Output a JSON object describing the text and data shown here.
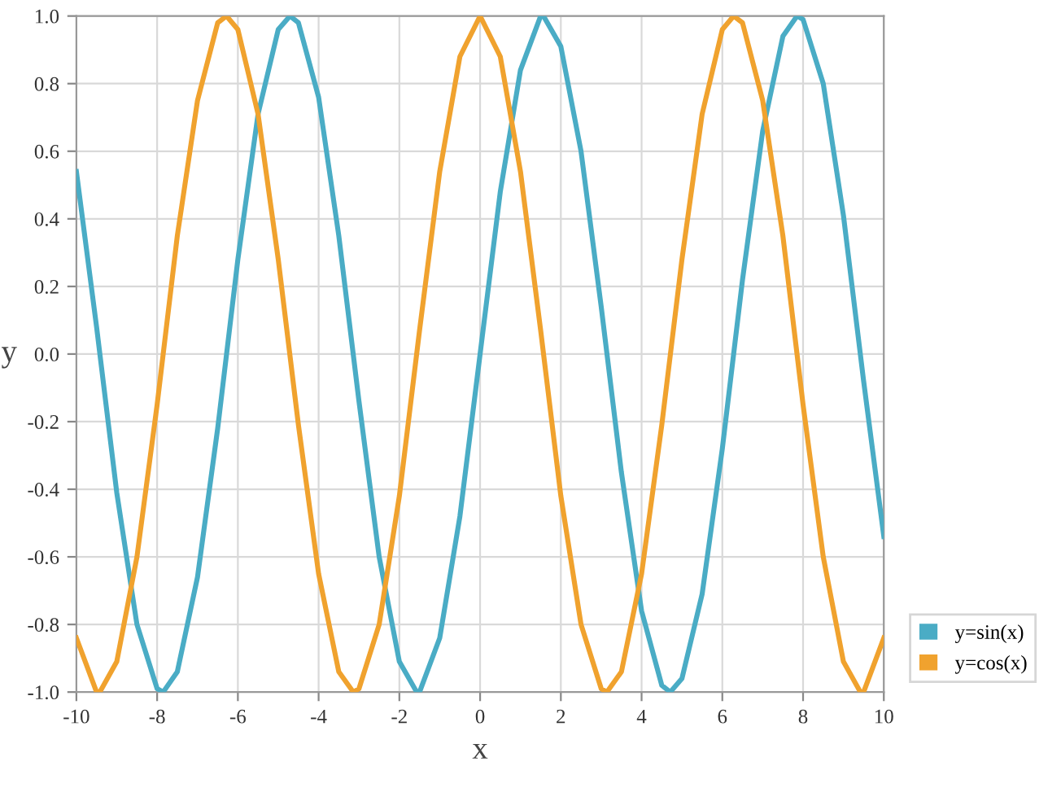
{
  "chart_data": {
    "type": "line",
    "xlabel": "x",
    "ylabel": "y",
    "series": [
      {
        "name": "y=sin(x)",
        "color": "#4aacc5",
        "x": [
          -10,
          -9.5,
          -9,
          -8.5,
          -8,
          -7.85,
          -7.5,
          -7,
          -6.5,
          -6,
          -5.5,
          -5,
          -4.71,
          -4.5,
          -4,
          -3.5,
          -3,
          -2.5,
          -2,
          -1.57,
          -1.5,
          -1,
          -0.5,
          0,
          0.5,
          1,
          1.5,
          1.57,
          2,
          2.5,
          3,
          3.5,
          4,
          4.5,
          4.71,
          5,
          5.5,
          6,
          6.5,
          7,
          7.5,
          7.85,
          8,
          8.5,
          9,
          9.5,
          10
        ],
        "values": [
          0.54,
          0.08,
          -0.41,
          -0.8,
          -0.99,
          -1,
          -0.94,
          -0.66,
          -0.22,
          0.28,
          0.71,
          0.96,
          1,
          0.98,
          0.76,
          0.35,
          -0.14,
          -0.6,
          -0.91,
          -1,
          -1,
          -0.84,
          -0.48,
          0,
          0.48,
          0.84,
          1,
          1,
          0.91,
          0.6,
          0.14,
          -0.35,
          -0.76,
          -0.98,
          -1,
          -0.96,
          -0.71,
          -0.28,
          0.22,
          0.66,
          0.94,
          1,
          0.99,
          0.8,
          0.41,
          -0.08,
          -0.54
        ]
      },
      {
        "name": "y=cos(x)",
        "color": "#f0a22e",
        "x": [
          -10,
          -9.5,
          -9.42,
          -9,
          -8.5,
          -8,
          -7.5,
          -7,
          -6.5,
          -6.28,
          -6,
          -5.5,
          -5,
          -4.5,
          -4,
          -3.5,
          -3.14,
          -3,
          -2.5,
          -2,
          -1.5,
          -1,
          -0.5,
          0,
          0.5,
          1,
          1.5,
          2,
          2.5,
          3,
          3.14,
          3.5,
          4,
          4.5,
          5,
          5.5,
          6,
          6.28,
          6.5,
          7,
          7.5,
          8,
          8.5,
          9,
          9.42,
          9.5,
          10
        ],
        "values": [
          -0.84,
          -1,
          -1,
          -0.91,
          -0.6,
          -0.15,
          0.35,
          0.75,
          0.98,
          1,
          0.96,
          0.71,
          0.28,
          -0.21,
          -0.65,
          -0.94,
          -1,
          -0.99,
          -0.8,
          -0.42,
          0.07,
          0.54,
          0.88,
          1,
          0.88,
          0.54,
          0.07,
          -0.42,
          -0.8,
          -0.99,
          -1,
          -0.94,
          -0.65,
          -0.21,
          0.28,
          0.71,
          0.96,
          1,
          0.98,
          0.75,
          0.35,
          -0.15,
          -0.6,
          -0.91,
          -1,
          -1,
          -0.84
        ]
      }
    ],
    "xlim": [
      -10,
      10
    ],
    "xticks": [
      -10,
      -8,
      -6,
      -4,
      -2,
      0,
      2,
      4,
      6,
      8,
      10
    ],
    "ylim": [
      -1.0,
      1.0
    ],
    "yticks": [
      {
        "value": -1,
        "label": "-1.0"
      },
      -0.8,
      -0.6,
      -0.4,
      -0.2,
      {
        "value": 0,
        "label": "0.0"
      },
      0.2,
      0.4,
      0.6,
      0.8,
      {
        "value": 1,
        "label": "1.0"
      }
    ],
    "grid": true,
    "legend": "bottom right",
    "marker": "none",
    "line_style": "solid"
  }
}
